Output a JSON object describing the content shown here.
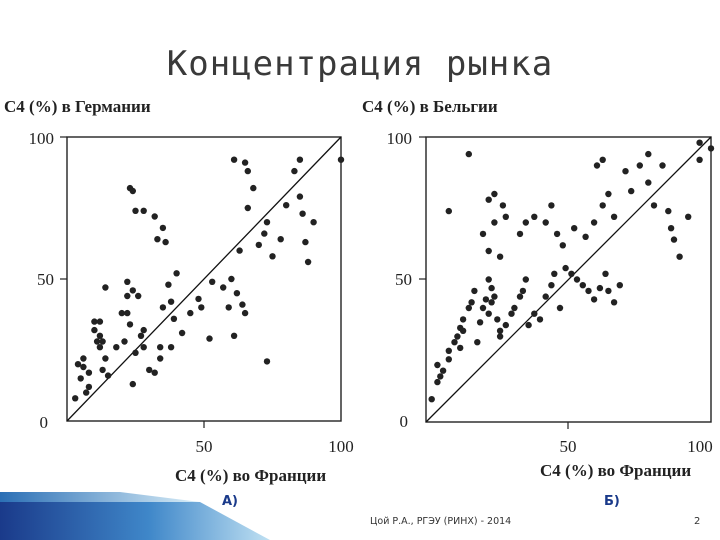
{
  "slide": {
    "title": "Концентрация рынка",
    "footer": "Цой Р.А., РГЭУ (РИНХ) - 2014",
    "page_number": "2"
  },
  "chart_data": [
    {
      "type": "scatter",
      "panel_label": "А)",
      "title": "C4 (%) в Германии",
      "xlabel": "C4 (%) во Франции",
      "ylabel": "",
      "xlim": [
        0,
        100
      ],
      "ylim": [
        0,
        100
      ],
      "xticks": [
        "50",
        "100"
      ],
      "yticks": [
        "0",
        "50",
        "100"
      ],
      "diagonal": true,
      "points": [
        [
          3,
          8
        ],
        [
          5,
          15
        ],
        [
          4,
          20
        ],
        [
          6,
          19
        ],
        [
          7,
          10
        ],
        [
          8,
          12
        ],
        [
          8,
          17
        ],
        [
          6,
          22
        ],
        [
          10,
          32
        ],
        [
          10,
          35
        ],
        [
          11,
          28
        ],
        [
          12,
          30
        ],
        [
          13,
          28
        ],
        [
          12,
          26
        ],
        [
          13,
          18
        ],
        [
          14,
          22
        ],
        [
          15,
          16
        ],
        [
          12,
          35
        ],
        [
          14,
          47
        ],
        [
          18,
          26
        ],
        [
          20,
          38
        ],
        [
          21,
          28
        ],
        [
          22,
          44
        ],
        [
          22,
          38
        ],
        [
          22,
          49
        ],
        [
          23,
          34
        ],
        [
          24,
          46
        ],
        [
          24,
          13
        ],
        [
          25,
          24
        ],
        [
          26,
          44
        ],
        [
          27,
          30
        ],
        [
          28,
          32
        ],
        [
          28,
          26
        ],
        [
          25,
          74
        ],
        [
          28,
          74
        ],
        [
          23,
          82
        ],
        [
          24,
          81
        ],
        [
          32,
          72
        ],
        [
          33,
          64
        ],
        [
          35,
          68
        ],
        [
          36,
          63
        ],
        [
          34,
          26
        ],
        [
          35,
          40
        ],
        [
          37,
          48
        ],
        [
          38,
          42
        ],
        [
          39,
          36
        ],
        [
          40,
          52
        ],
        [
          30,
          18
        ],
        [
          32,
          17
        ],
        [
          34,
          22
        ],
        [
          38,
          26
        ],
        [
          42,
          31
        ],
        [
          45,
          38
        ],
        [
          48,
          43
        ],
        [
          49,
          40
        ],
        [
          52,
          29
        ],
        [
          53,
          49
        ],
        [
          57,
          47
        ],
        [
          59,
          40
        ],
        [
          60,
          50
        ],
        [
          61,
          30
        ],
        [
          62,
          45
        ],
        [
          64,
          41
        ],
        [
          65,
          38
        ],
        [
          63,
          60
        ],
        [
          66,
          75
        ],
        [
          68,
          82
        ],
        [
          70,
          62
        ],
        [
          72,
          66
        ],
        [
          73,
          70
        ],
        [
          75,
          58
        ],
        [
          78,
          64
        ],
        [
          80,
          76
        ],
        [
          83,
          88
        ],
        [
          85,
          79
        ],
        [
          86,
          73
        ],
        [
          87,
          63
        ],
        [
          88,
          56
        ],
        [
          90,
          70
        ],
        [
          61,
          92
        ],
        [
          65,
          91
        ],
        [
          66,
          88
        ],
        [
          73,
          21
        ],
        [
          85,
          92
        ],
        [
          100,
          92
        ]
      ]
    },
    {
      "type": "scatter",
      "panel_label": "Б)",
      "title": "C4 (%) в Бельгии",
      "xlabel": "C4 (%) во Франции",
      "ylabel": "",
      "xlim": [
        0,
        100
      ],
      "ylim": [
        0,
        100
      ],
      "xticks": [
        "50",
        "100"
      ],
      "yticks": [
        "0",
        "50",
        "100"
      ],
      "diagonal": true,
      "points": [
        [
          2,
          8
        ],
        [
          4,
          14
        ],
        [
          5,
          16
        ],
        [
          4,
          20
        ],
        [
          6,
          18
        ],
        [
          8,
          22
        ],
        [
          8,
          25
        ],
        [
          10,
          28
        ],
        [
          11,
          30
        ],
        [
          12,
          26
        ],
        [
          12,
          33
        ],
        [
          13,
          36
        ],
        [
          13,
          32
        ],
        [
          15,
          40
        ],
        [
          16,
          42
        ],
        [
          17,
          46
        ],
        [
          18,
          28
        ],
        [
          19,
          35
        ],
        [
          20,
          40
        ],
        [
          21,
          43
        ],
        [
          22,
          38
        ],
        [
          22,
          50
        ],
        [
          23,
          47
        ],
        [
          24,
          44
        ],
        [
          23,
          42
        ],
        [
          25,
          36
        ],
        [
          26,
          32
        ],
        [
          26,
          30
        ],
        [
          28,
          34
        ],
        [
          30,
          38
        ],
        [
          31,
          40
        ],
        [
          33,
          44
        ],
        [
          34,
          46
        ],
        [
          35,
          50
        ],
        [
          36,
          34
        ],
        [
          38,
          38
        ],
        [
          40,
          36
        ],
        [
          42,
          44
        ],
        [
          44,
          48
        ],
        [
          45,
          52
        ],
        [
          47,
          40
        ],
        [
          49,
          54
        ],
        [
          51,
          52
        ],
        [
          53,
          50
        ],
        [
          55,
          48
        ],
        [
          57,
          46
        ],
        [
          59,
          43
        ],
        [
          61,
          47
        ],
        [
          63,
          52
        ],
        [
          64,
          46
        ],
        [
          66,
          42
        ],
        [
          68,
          48
        ],
        [
          8,
          74
        ],
        [
          15,
          94
        ],
        [
          22,
          78
        ],
        [
          24,
          80
        ],
        [
          27,
          76
        ],
        [
          28,
          72
        ],
        [
          24,
          70
        ],
        [
          33,
          66
        ],
        [
          35,
          70
        ],
        [
          38,
          72
        ],
        [
          42,
          70
        ],
        [
          44,
          76
        ],
        [
          46,
          66
        ],
        [
          48,
          62
        ],
        [
          52,
          68
        ],
        [
          56,
          65
        ],
        [
          59,
          70
        ],
        [
          62,
          76
        ],
        [
          64,
          80
        ],
        [
          66,
          72
        ],
        [
          70,
          88
        ],
        [
          72,
          81
        ],
        [
          75,
          90
        ],
        [
          78,
          84
        ],
        [
          80,
          76
        ],
        [
          83,
          90
        ],
        [
          85,
          74
        ],
        [
          86,
          68
        ],
        [
          87,
          64
        ],
        [
          89,
          58
        ],
        [
          92,
          72
        ],
        [
          96,
          92
        ],
        [
          100,
          96
        ],
        [
          60,
          90
        ],
        [
          62,
          92
        ],
        [
          78,
          94
        ],
        [
          96,
          98
        ],
        [
          20,
          66
        ],
        [
          22,
          60
        ],
        [
          26,
          58
        ]
      ]
    }
  ]
}
